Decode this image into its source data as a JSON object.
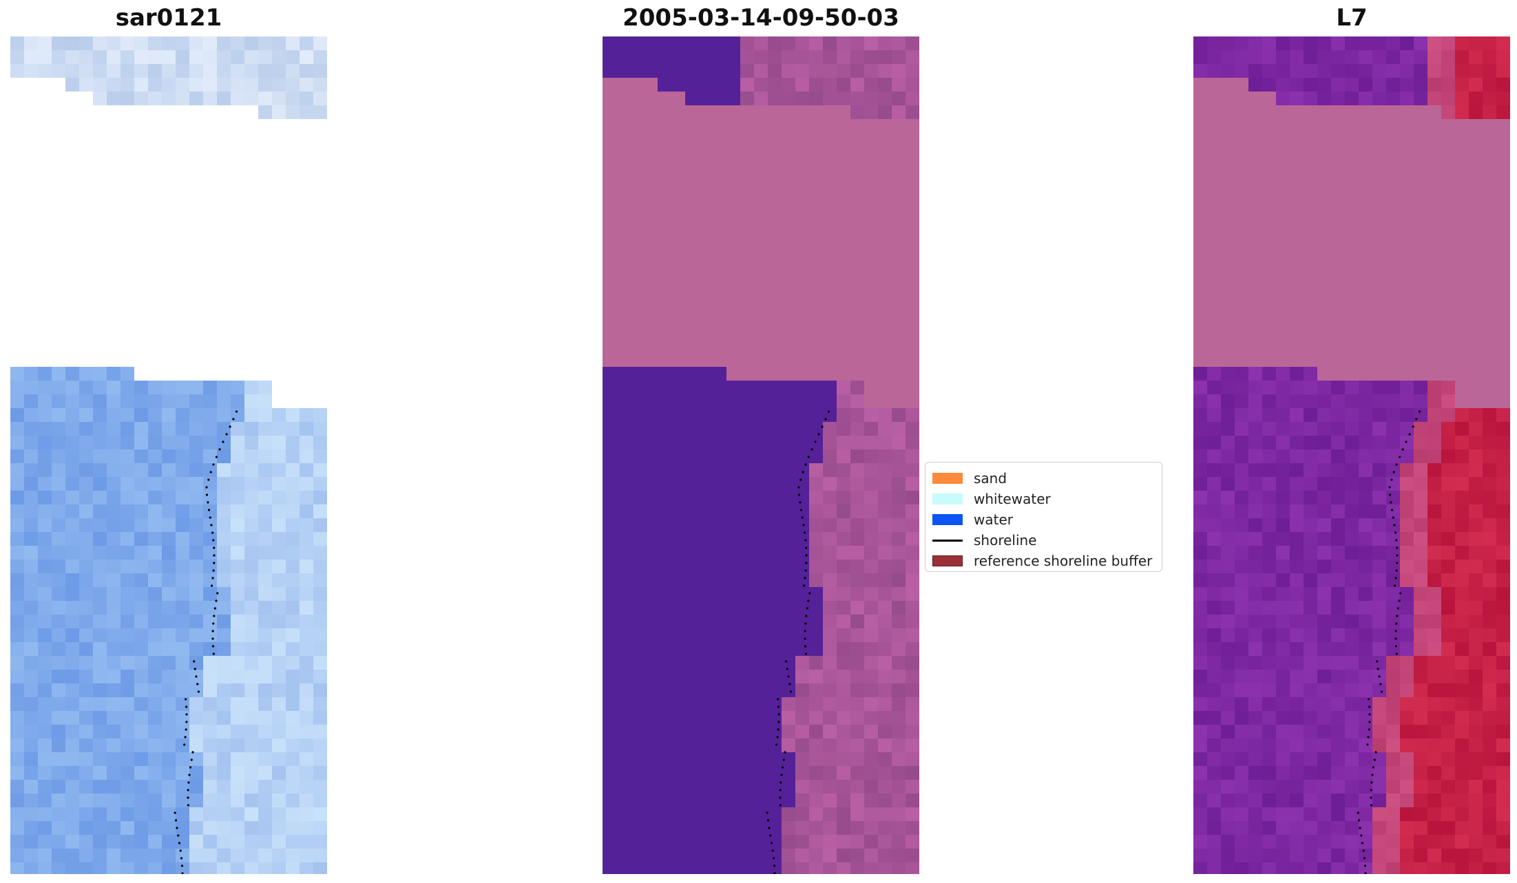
{
  "panels": [
    {
      "title": "sar0121",
      "style": "rgb"
    },
    {
      "title": "2005-03-14-09-50-03",
      "style": "classified"
    },
    {
      "title": "L7",
      "style": "falsecolor"
    }
  ],
  "legend": {
    "items": [
      {
        "label": "sand",
        "color": "#fb8a3a",
        "kind": "patch"
      },
      {
        "label": "whitewater",
        "color": "#c8fbfb",
        "kind": "patch"
      },
      {
        "label": "water",
        "color": "#0c55f2",
        "kind": "patch"
      },
      {
        "label": "shoreline",
        "color": "#000000",
        "kind": "line"
      },
      {
        "label": "reference shoreline buffer",
        "color": "#9c3038",
        "kind": "patch"
      }
    ]
  },
  "colors": {
    "masked_rgb": "#ffffff",
    "masked_classified": "#bb6698",
    "water_classified": "#552199",
    "land_classified": "#9a5090",
    "falsecolor_water": "#7a2a9a",
    "falsecolor_land": "#c01848",
    "shoreline_points": "#000000"
  }
}
